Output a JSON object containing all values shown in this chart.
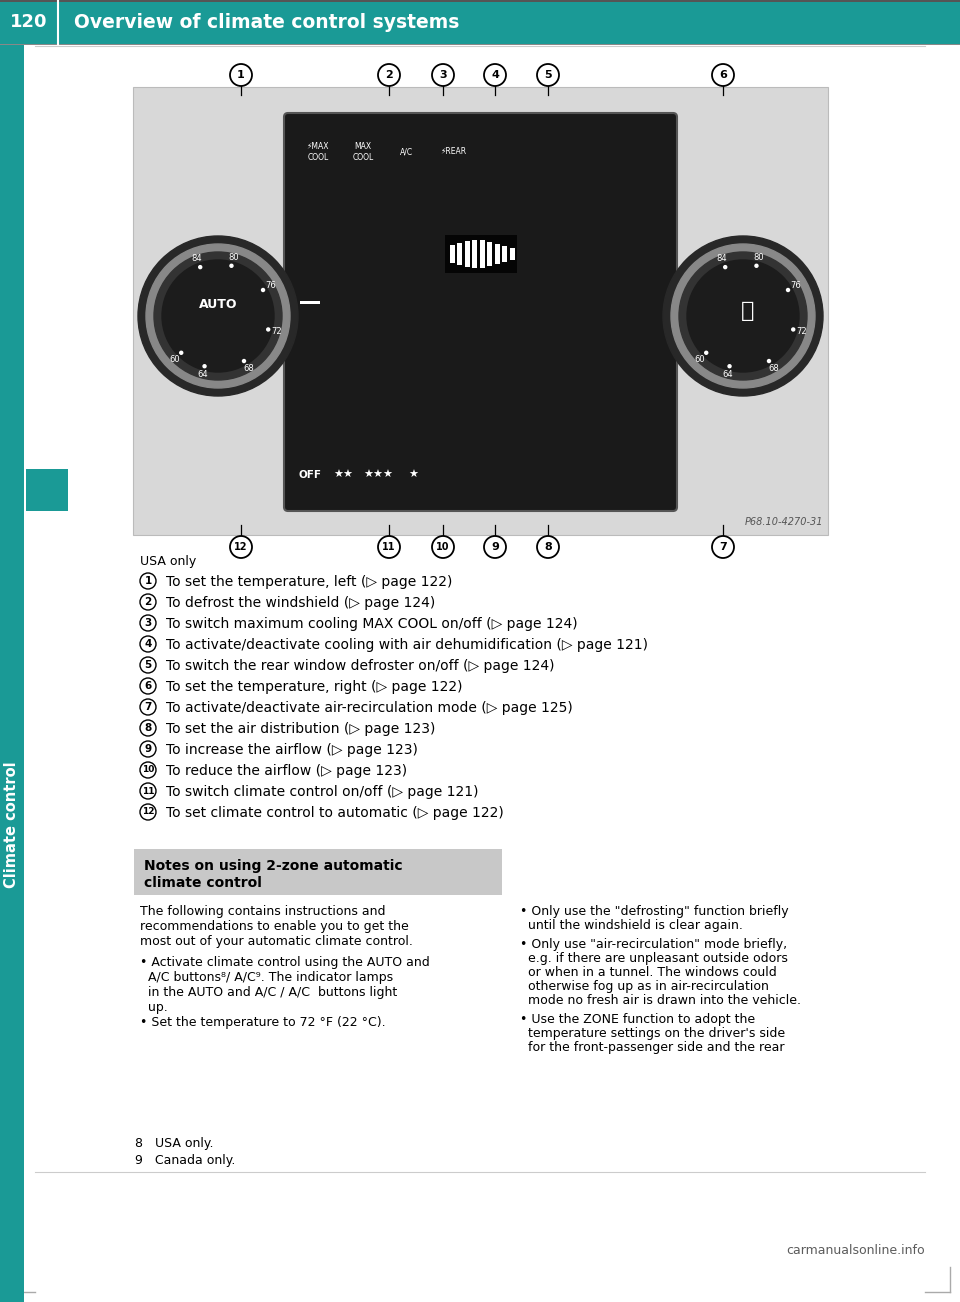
{
  "page_number": "120",
  "header_title": "Overview of climate control systems",
  "header_bg_color": "#1a9a96",
  "header_text_color": "#ffffff",
  "page_bg_color": "#ffffff",
  "sidebar_color": "#1a9a96",
  "sidebar_text": "Climate control",
  "sidebar_text_color": "#ffffff",
  "usa_only_text": "USA only",
  "numbered_items": [
    {
      "num": "1",
      "text": "To set the temperature, left (▷ page 122)"
    },
    {
      "num": "2",
      "text": "To defrost the windshield (▷ page 124)"
    },
    {
      "num": "3",
      "text": "To switch maximum cooling MAX COOL on/off (▷ page 124)"
    },
    {
      "num": "4",
      "text": "To activate/deactivate cooling with air dehumidification (▷ page 121)"
    },
    {
      "num": "5",
      "text": "To switch the rear window defroster on/off (▷ page 124)"
    },
    {
      "num": "6",
      "text": "To set the temperature, right (▷ page 122)"
    },
    {
      "num": "7",
      "text": "To activate/deactivate air-recirculation mode (▷ page 125)"
    },
    {
      "num": "8",
      "text": "To set the air distribution (▷ page 123)"
    },
    {
      "num": "9",
      "text": "To increase the airflow (▷ page 123)"
    },
    {
      "num": "10",
      "text": "To reduce the airflow (▷ page 123)"
    },
    {
      "num": "11",
      "text": "To switch climate control on/off (▷ page 121)"
    },
    {
      "num": "12",
      "text": "To set climate control to automatic (▷ page 122)"
    }
  ],
  "notes_box_title_line1": "Notes on using 2-zone automatic",
  "notes_box_title_line2": "climate control",
  "notes_box_bg": "#c8c8c8",
  "notes_left_lines": [
    "The following contains instructions and",
    "recommendations to enable you to get the",
    "most out of your automatic climate control.",
    "",
    "• Activate climate control using the AUTO and",
    "  A/C buttons⁸/ A/C⁹. The indicator lamps",
    "  in the AUTO and A/C / A/C  buttons light",
    "  up.",
    "• Set the temperature to 72 °F (22 °C)."
  ],
  "notes_right_bullets": [
    [
      "Only use the \"defrosting\" function briefly",
      "until the windshield is clear again."
    ],
    [
      "Only use \"air-recirculation\" mode briefly,",
      "e.g. if there are unpleasant outside odors",
      "or when in a tunnel. The windows could",
      "otherwise fog up as in air-recirculation",
      "mode no fresh air is drawn into the vehicle."
    ],
    [
      "Use the ZONE function to adopt the",
      "temperature settings on the driver's side",
      "for the front-passenger side and the rear"
    ]
  ],
  "footnote_8": "8   USA only.",
  "footnote_9": "9   Canada only.",
  "watermark": "carmanualsonline.info",
  "image_ref": "P68.10-4270-31",
  "dial_labels": [
    "60",
    "64",
    "68",
    "72",
    "76",
    "80",
    "84"
  ],
  "dial_angles": [
    -135,
    -105,
    -60,
    -15,
    30,
    75,
    110
  ],
  "left_dial_text": "AUTO",
  "panel_bg": "#d8d8d8",
  "panel_dark": "#1a1a1a",
  "callout_top_nums": [
    1,
    2,
    3,
    4,
    5,
    6
  ],
  "callout_bot_nums": [
    12,
    11,
    10,
    9,
    8,
    7
  ]
}
